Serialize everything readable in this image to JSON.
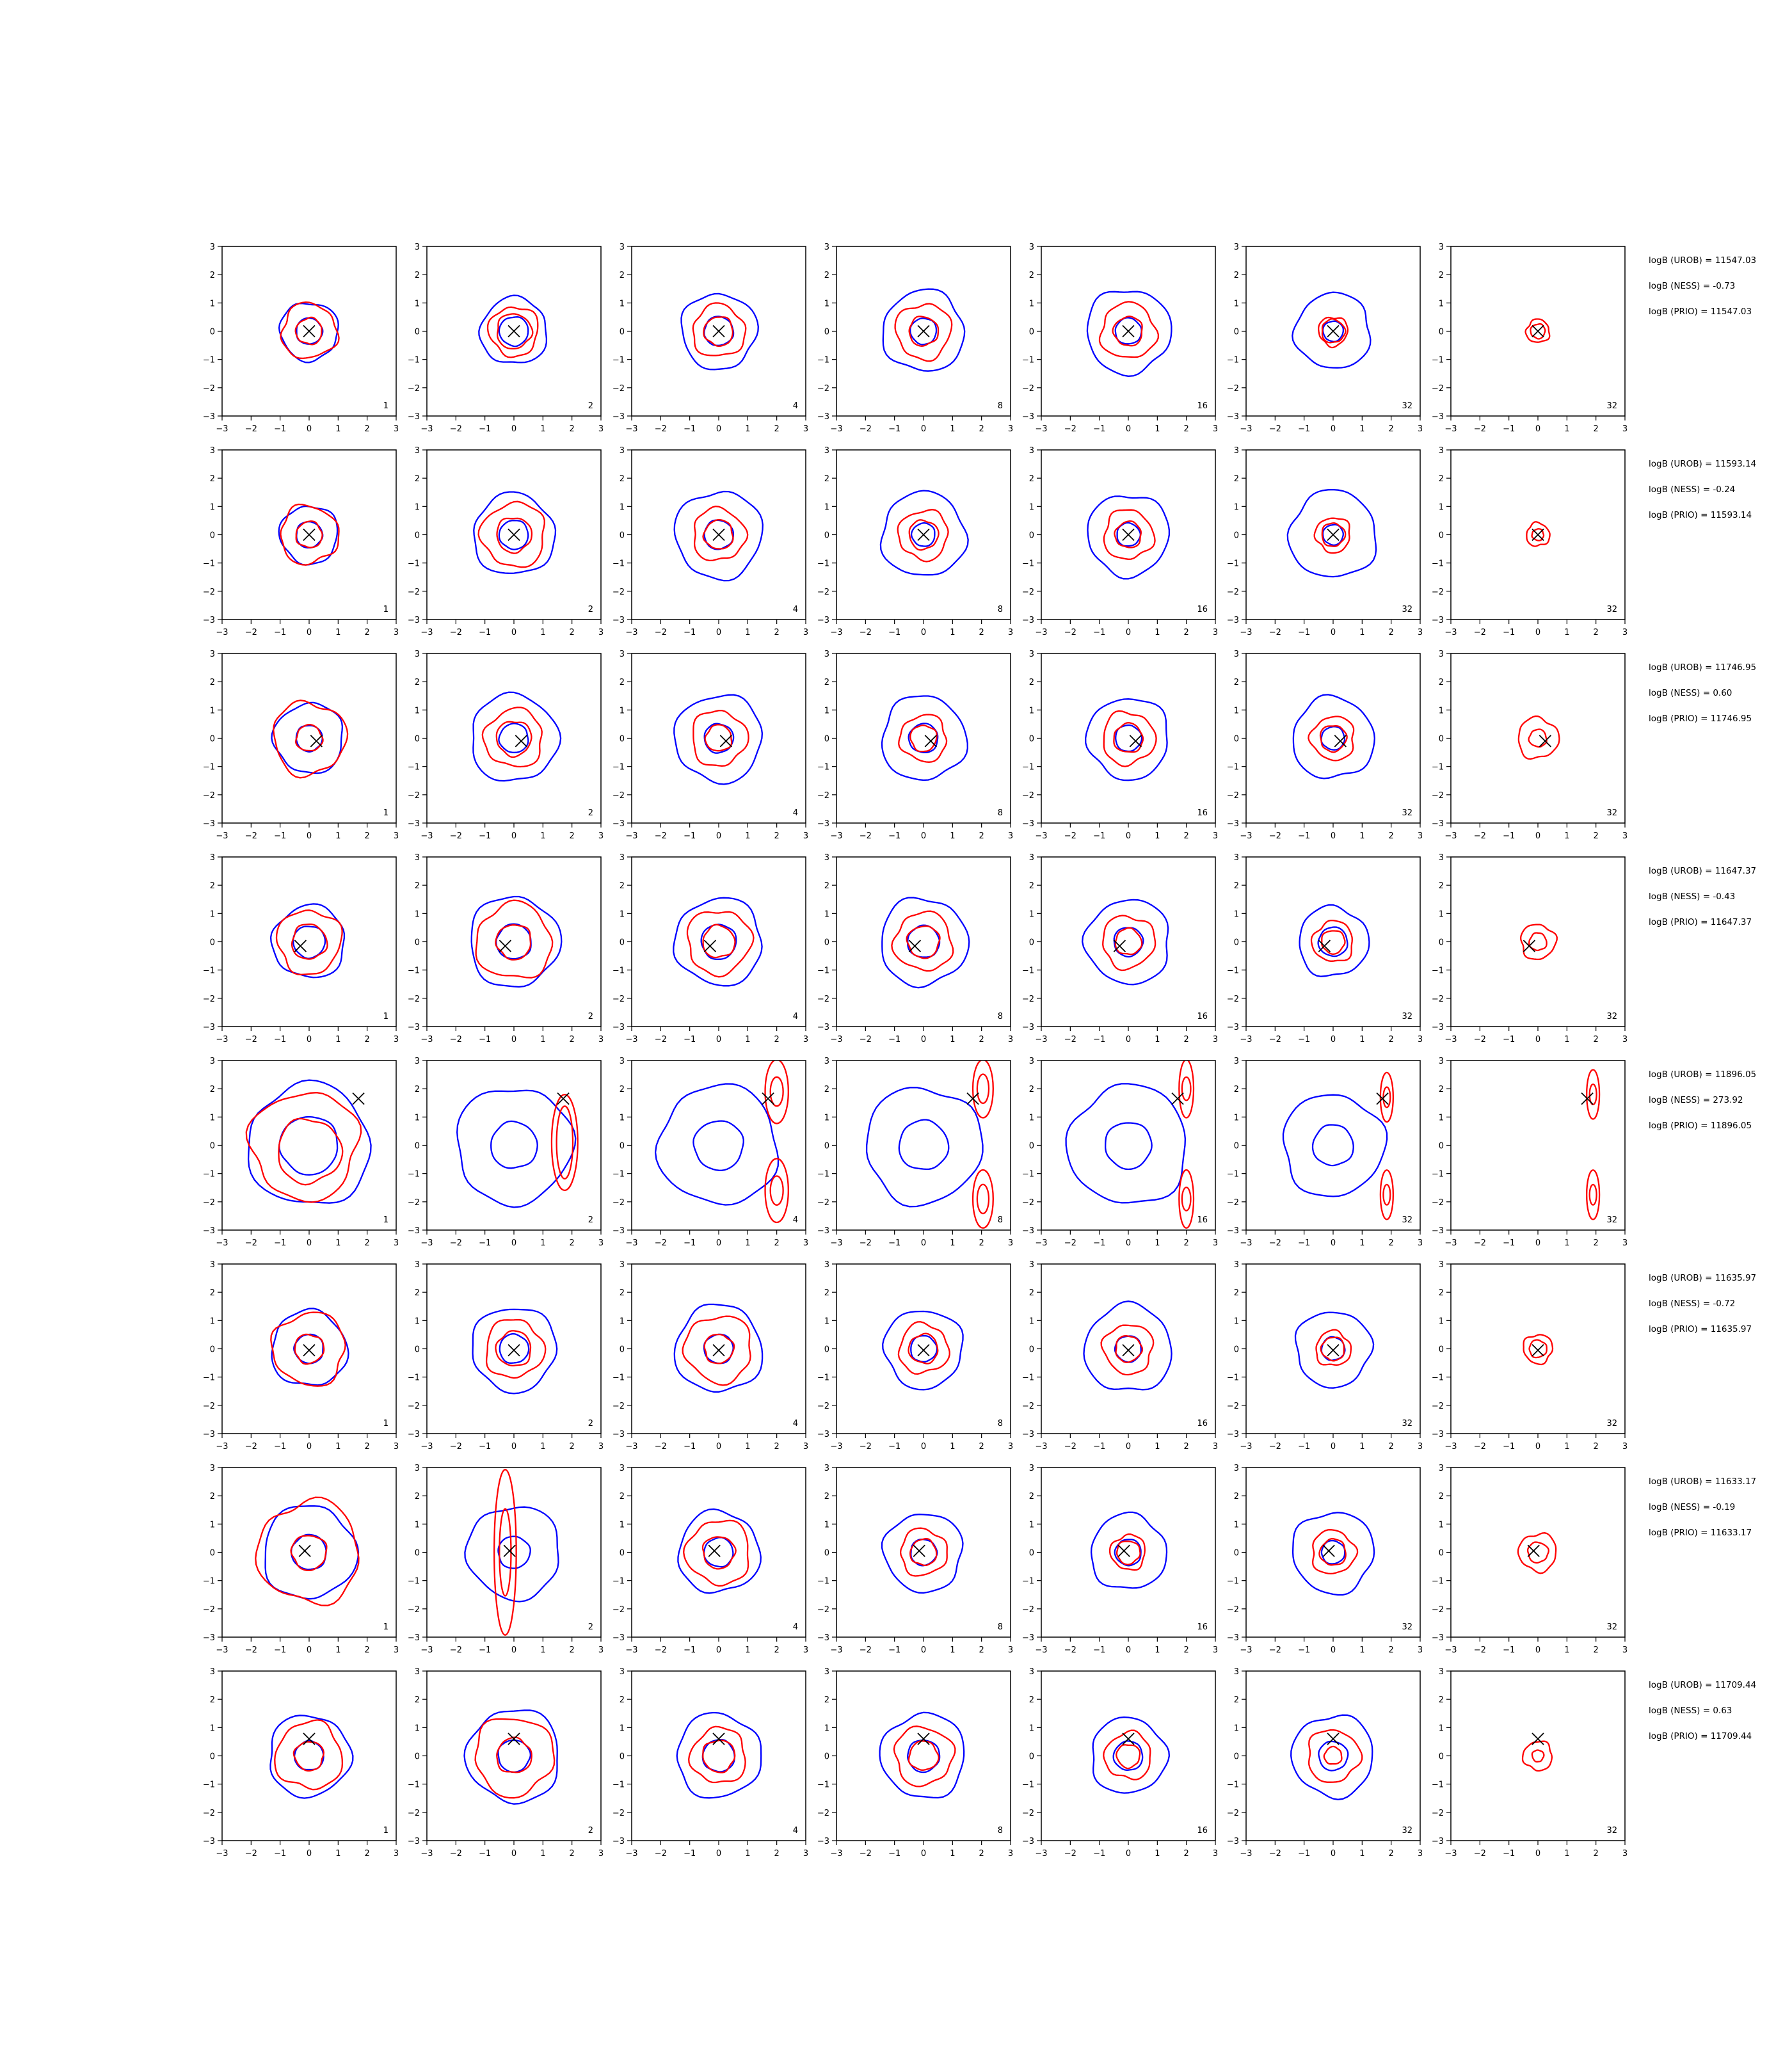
{
  "colors": {
    "blue": "#0000ff",
    "red": "#ff0000",
    "axis": "#000000",
    "background": "#ffffff"
  },
  "chart_data": {
    "type": "contour-grid",
    "rows": 8,
    "cols": 7,
    "xlim": [
      -3,
      3
    ],
    "ylim": [
      -3,
      3
    ],
    "ticks": [
      "−3",
      "−2",
      "−1",
      "0",
      "1",
      "2",
      "3"
    ],
    "panel_labels": [
      "1",
      "2",
      "4",
      "8",
      "16",
      "32",
      "32"
    ],
    "series": [
      {
        "color": "blue",
        "description_of_role": "contour"
      },
      {
        "color": "red",
        "description_of_role": "contour"
      }
    ],
    "rows_data": [
      {
        "marker": [
          0.0,
          0.0
        ],
        "stats": [
          "logB (UROB) = 11547.03",
          "logB (NESS) = -0.73",
          "logB (PRIO) = 11547.03"
        ],
        "blue_radii": [
          [
            0.45,
            1.0
          ],
          [
            0.5,
            1.15
          ],
          [
            0.5,
            1.3
          ],
          [
            0.45,
            1.4
          ],
          [
            0.45,
            1.45
          ],
          [
            0.35,
            1.3
          ],
          [
            0.0,
            0.0
          ]
        ],
        "red_radii": [
          [
            0.45,
            0.95
          ],
          [
            0.6,
            0.85
          ],
          [
            0.5,
            0.9
          ],
          [
            0.5,
            0.95
          ],
          [
            0.5,
            0.95
          ],
          [
            0.4,
            0.5
          ],
          [
            0.25,
            0.4
          ]
        ]
      },
      {
        "marker": [
          0.0,
          0.0
        ],
        "stats": [
          "logB (UROB) = 11593.14",
          "logB (NESS) = -0.24",
          "logB (PRIO) = 11593.14"
        ],
        "blue_radii": [
          [
            0.45,
            1.0
          ],
          [
            0.5,
            1.4
          ],
          [
            0.5,
            1.5
          ],
          [
            0.4,
            1.45
          ],
          [
            0.4,
            1.4
          ],
          [
            0.35,
            1.5
          ],
          [
            0.0,
            0.0
          ]
        ],
        "red_radii": [
          [
            0.45,
            1.0
          ],
          [
            0.6,
            1.1
          ],
          [
            0.5,
            0.9
          ],
          [
            0.5,
            0.85
          ],
          [
            0.45,
            0.85
          ],
          [
            0.4,
            0.6
          ],
          [
            0.2,
            0.4
          ]
        ]
      },
      {
        "marker": [
          0.25,
          -0.1
        ],
        "stats": [
          "logB (UROB) = 11746.95",
          "logB (NESS) = 0.60",
          "logB (PRIO) = 11746.95"
        ],
        "blue_radii": [
          [
            0.45,
            1.2
          ],
          [
            0.5,
            1.5
          ],
          [
            0.5,
            1.5
          ],
          [
            0.5,
            1.45
          ],
          [
            0.45,
            1.4
          ],
          [
            0.4,
            1.4
          ],
          [
            0.0,
            0.0
          ]
        ],
        "red_radii": [
          [
            0.45,
            1.25
          ],
          [
            0.6,
            1.0
          ],
          [
            0.45,
            0.95
          ],
          [
            0.45,
            0.8
          ],
          [
            0.5,
            0.9
          ],
          [
            0.45,
            0.75
          ],
          [
            0.3,
            0.7
          ]
        ]
      },
      {
        "marker": [
          -0.3,
          -0.15
        ],
        "stats": [
          "logB (UROB) = 11647.37",
          "logB (NESS) = -0.43",
          "logB (PRIO) = 11647.37"
        ],
        "blue_radii": [
          [
            0.55,
            1.25
          ],
          [
            0.6,
            1.55
          ],
          [
            0.6,
            1.5
          ],
          [
            0.55,
            1.5
          ],
          [
            0.5,
            1.45
          ],
          [
            0.5,
            1.2
          ],
          [
            0.0,
            0.0
          ]
        ],
        "red_radii": [
          [
            0.6,
            1.1
          ],
          [
            0.6,
            1.3
          ],
          [
            0.55,
            1.1
          ],
          [
            0.55,
            1.0
          ],
          [
            0.45,
            0.9
          ],
          [
            0.4,
            0.7
          ],
          [
            0.3,
            0.6
          ]
        ]
      },
      {
        "marker": [
          1.7,
          1.65
        ],
        "stats": [
          "logB (UROB) = 11896.05",
          "logB (NESS) = 273.92",
          "logB (PRIO) = 11896.05"
        ],
        "blue_radii": [
          [
            1.0,
            2.1
          ],
          [
            0.8,
            2.0
          ],
          [
            0.85,
            2.05
          ],
          [
            0.85,
            2.0
          ],
          [
            0.8,
            2.05
          ],
          [
            0.7,
            1.75
          ],
          [
            0.0,
            0.0
          ]
        ],
        "red_radii": [
          [
            1.1,
            1.85
          ],
          [
            0.0,
            0.0
          ],
          [
            0.0,
            0.0
          ],
          [
            0.0,
            0.0
          ],
          [
            0.0,
            0.0
          ],
          [
            0.0,
            0.0
          ],
          [
            0.0,
            0.0
          ]
        ]
      },
      {
        "marker": [
          0.0,
          -0.05
        ],
        "stats": [
          "logB (UROB) = 11635.97",
          "logB (NESS) = -0.72",
          "logB (PRIO) = 11635.97"
        ],
        "blue_radii": [
          [
            0.5,
            1.3
          ],
          [
            0.5,
            1.45
          ],
          [
            0.5,
            1.5
          ],
          [
            0.45,
            1.35
          ],
          [
            0.45,
            1.5
          ],
          [
            0.4,
            1.3
          ],
          [
            0.0,
            0.0
          ]
        ],
        "red_radii": [
          [
            0.5,
            1.25
          ],
          [
            0.6,
            1.0
          ],
          [
            0.5,
            1.15
          ],
          [
            0.5,
            0.85
          ],
          [
            0.45,
            0.85
          ],
          [
            0.4,
            0.6
          ],
          [
            0.3,
            0.5
          ]
        ]
      },
      {
        "marker": [
          -0.15,
          0.05
        ],
        "stats": [
          "logB (UROB) = 11633.17",
          "logB (NESS) = -0.19",
          "logB (PRIO) = 11633.17"
        ],
        "blue_radii": [
          [
            0.6,
            1.6
          ],
          [
            0.55,
            1.6
          ],
          [
            0.5,
            1.4
          ],
          [
            0.45,
            1.35
          ],
          [
            0.45,
            1.3
          ],
          [
            0.4,
            1.4
          ],
          [
            0.0,
            0.0
          ]
        ],
        "red_radii": [
          [
            0.6,
            1.75
          ],
          [
            0.0,
            0.0
          ],
          [
            0.55,
            1.1
          ],
          [
            0.45,
            0.8
          ],
          [
            0.4,
            0.6
          ],
          [
            0.45,
            0.75
          ],
          [
            0.35,
            0.65
          ]
        ]
      },
      {
        "marker": [
          0.0,
          0.6
        ],
        "stats": [
          "logB (UROB) = 11709.44",
          "logB (NESS) = 0.63",
          "logB (PRIO) = 11709.44"
        ],
        "blue_radii": [
          [
            0.5,
            1.4
          ],
          [
            0.55,
            1.6
          ],
          [
            0.55,
            1.45
          ],
          [
            0.55,
            1.45
          ],
          [
            0.5,
            1.3
          ],
          [
            0.5,
            1.4
          ],
          [
            0.0,
            0.0
          ]
        ],
        "red_radii": [
          [
            0.5,
            1.15
          ],
          [
            0.6,
            1.35
          ],
          [
            0.55,
            0.95
          ],
          [
            0.5,
            1.0
          ],
          [
            0.4,
            0.8
          ],
          [
            0.3,
            0.9
          ],
          [
            0.2,
            0.5
          ]
        ]
      }
    ],
    "special_features": [
      {
        "row": 4,
        "col": 1,
        "kind": "red ellipse pair",
        "center": [
          1.75,
          0.1
        ],
        "semi_axes": [
          [
            0.28,
            1.25
          ],
          [
            0.45,
            1.65
          ]
        ]
      },
      {
        "row": 4,
        "col": 2,
        "kind": "red ellipse pairs",
        "centers": [
          [
            2.0,
            1.9
          ],
          [
            2.0,
            -1.6
          ]
        ],
        "semi_axes": [
          [
            0.22,
            0.5
          ],
          [
            0.4,
            1.1
          ]
        ]
      },
      {
        "row": 4,
        "col": 3,
        "kind": "red ellipse pairs",
        "centers": [
          [
            2.05,
            2.0
          ],
          [
            2.05,
            -1.9
          ]
        ],
        "semi_axes": [
          [
            0.2,
            0.5
          ],
          [
            0.35,
            1.0
          ]
        ]
      },
      {
        "row": 4,
        "col": 4,
        "kind": "red ellipse pairs",
        "centers": [
          [
            2.0,
            2.0
          ],
          [
            2.0,
            -1.9
          ]
        ],
        "semi_axes": [
          [
            0.15,
            0.4
          ],
          [
            0.25,
            1.0
          ]
        ]
      },
      {
        "row": 4,
        "col": 5,
        "kind": "red ellipse pairs",
        "centers": [
          [
            1.85,
            1.7
          ],
          [
            1.85,
            -1.75
          ]
        ],
        "semi_axes": [
          [
            0.12,
            0.35
          ],
          [
            0.22,
            0.85
          ]
        ]
      },
      {
        "row": 4,
        "col": 6,
        "kind": "red ellipse pairs",
        "centers": [
          [
            1.9,
            1.8
          ],
          [
            1.9,
            -1.75
          ]
        ],
        "semi_axes": [
          [
            0.12,
            0.35
          ],
          [
            0.22,
            0.85
          ]
        ]
      },
      {
        "row": 6,
        "col": 1,
        "kind": "red ellipse pair",
        "center": [
          -0.3,
          0.0
        ],
        "semi_axes": [
          [
            0.2,
            1.5
          ],
          [
            0.38,
            2.85
          ]
        ]
      }
    ]
  }
}
